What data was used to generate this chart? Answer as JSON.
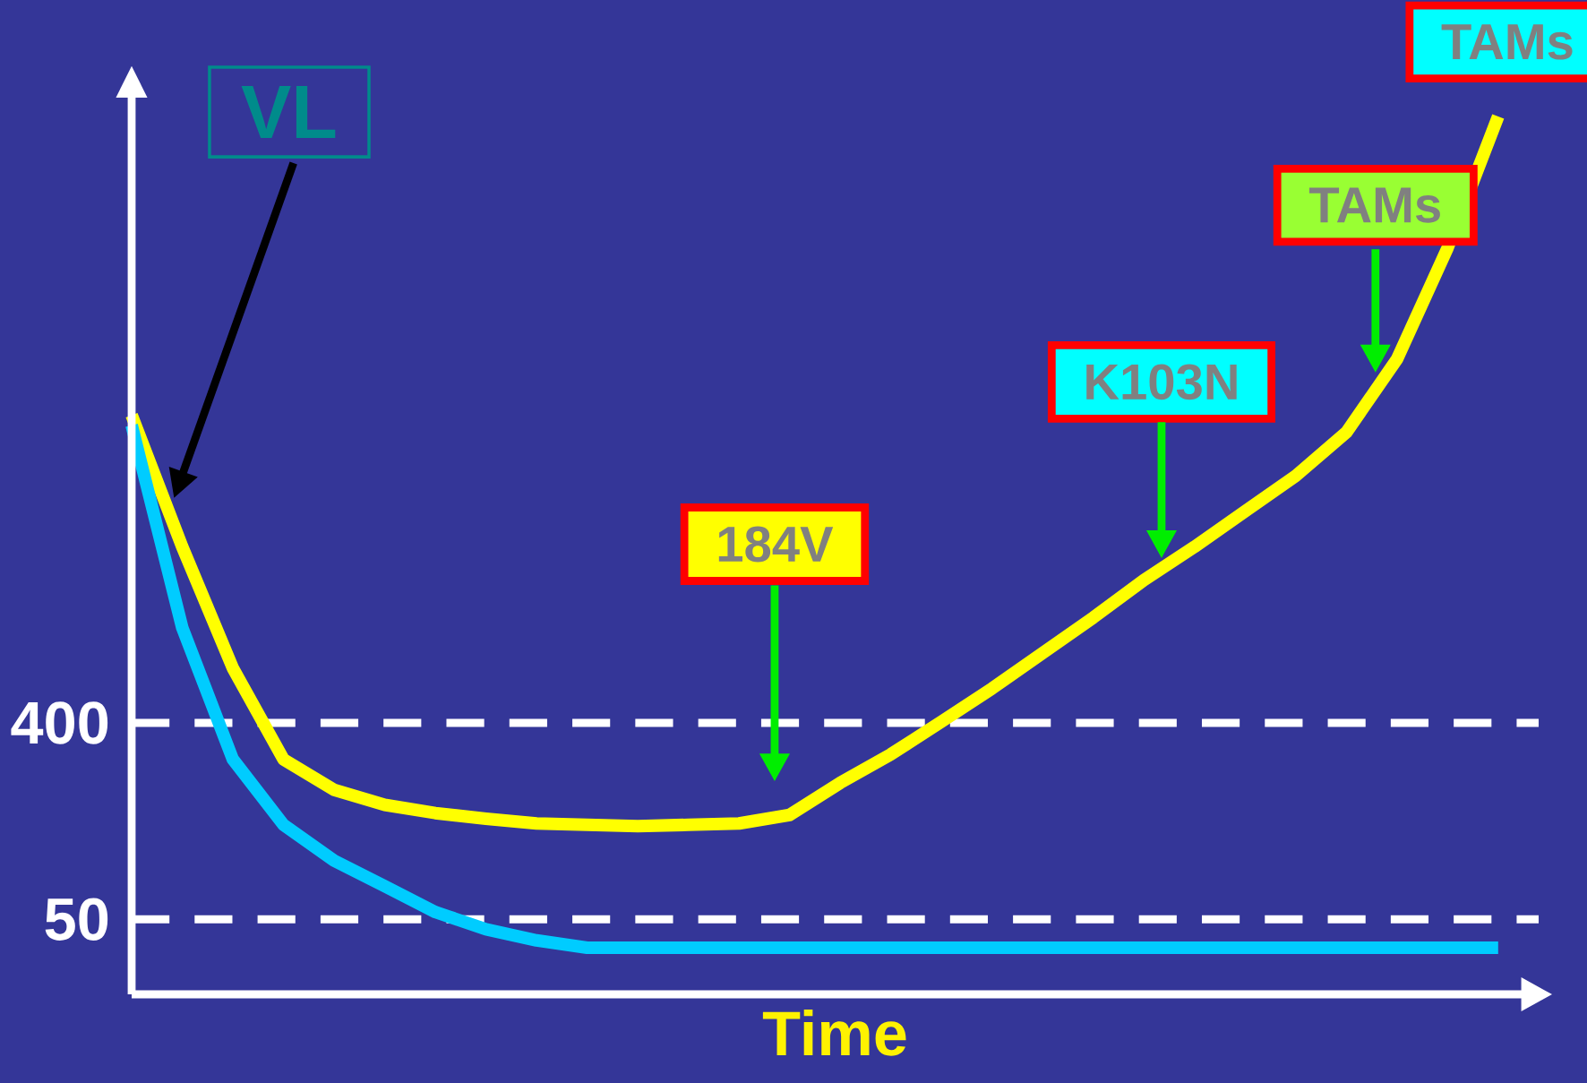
{
  "chart_data": {
    "type": "line",
    "xlabel": "Time",
    "categories": [
      null,
      null,
      null,
      null,
      null,
      null,
      null,
      null,
      null,
      null,
      null,
      null,
      null,
      null,
      null,
      null,
      null,
      null,
      null,
      null,
      null,
      null,
      null,
      null,
      null,
      null,
      null,
      null
    ],
    "series": [
      {
        "color": "#ffff00",
        "values": [
          10400,
          2580,
          714,
          272,
          197,
          168,
          154,
          145,
          138,
          136,
          134,
          136,
          138,
          151,
          212,
          287,
          405,
          576,
          838,
          1220,
          1815,
          2580,
          3760,
          5470,
          8670,
          18800,
          61100,
          246000
        ]
      },
      {
        "color": "#00ccff",
        "values": [
          9350,
          1096,
          272,
          136,
          93,
          71,
          54,
          45,
          40,
          37,
          37,
          37,
          37,
          37,
          37,
          37,
          37,
          37,
          37,
          37,
          37,
          37,
          37,
          37,
          37,
          37,
          37,
          37
        ]
      }
    ],
    "log": "y",
    "ylim": [
      22.6,
      300000
    ],
    "yticks": [
      50,
      400
    ],
    "marker": "none",
    "line_style": "solid",
    "ref_lines": [
      {
        "axis": "y",
        "value": 400,
        "color": "#ffffff",
        "line_style": "dashed"
      },
      {
        "axis": "y",
        "value": 50,
        "color": "#ffffff",
        "line_style": "dashed"
      }
    ],
    "annotations": [
      "VL",
      "184V",
      "K103N",
      "TAMs",
      "TAMs"
    ]
  }
}
